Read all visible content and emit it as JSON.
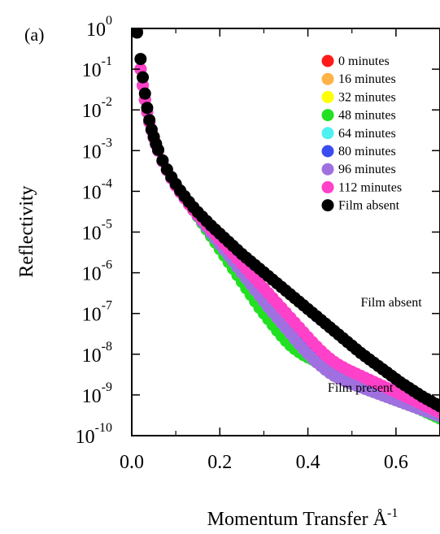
{
  "panel_label": "(a)",
  "chart_data": {
    "type": "scatter",
    "xlabel": "Momentum Transfer Å",
    "xlabel_exponent": "-1",
    "ylabel": "Reflectivity",
    "x_scale": "linear",
    "y_scale": "log",
    "xlim": [
      0.0,
      0.7
    ],
    "ylim": [
      1e-10,
      1.0
    ],
    "x_ticks": [
      {
        "value": 0.0,
        "label": "0.0"
      },
      {
        "value": 0.2,
        "label": "0.2"
      },
      {
        "value": 0.4,
        "label": "0.4"
      },
      {
        "value": 0.6,
        "label": "0.6"
      }
    ],
    "y_ticks": [
      {
        "exp": 0,
        "base": "10",
        "sup": "0"
      },
      {
        "exp": -1,
        "base": "10",
        "sup": "-1"
      },
      {
        "exp": -2,
        "base": "10",
        "sup": "-2"
      },
      {
        "exp": -3,
        "base": "10",
        "sup": "-3"
      },
      {
        "exp": -4,
        "base": "10",
        "sup": "-4"
      },
      {
        "exp": -5,
        "base": "10",
        "sup": "-5"
      },
      {
        "exp": -6,
        "base": "10",
        "sup": "-6"
      },
      {
        "exp": -7,
        "base": "10",
        "sup": "-7"
      },
      {
        "exp": -8,
        "base": "10",
        "sup": "-8"
      },
      {
        "exp": -9,
        "base": "10",
        "sup": "-9"
      },
      {
        "exp": -10,
        "base": "10",
        "sup": "-10"
      }
    ],
    "grid": false,
    "legend_position": "top-right",
    "annotations": [
      {
        "text": "Film absent",
        "x": 0.52,
        "y": 1.5e-07
      },
      {
        "text": "Film present",
        "x": 0.445,
        "y": 1.2e-09
      }
    ],
    "x": [
      0.012,
      0.02,
      0.025,
      0.03,
      0.035,
      0.04,
      0.045,
      0.05,
      0.055,
      0.06,
      0.07,
      0.08,
      0.09,
      0.1,
      0.11,
      0.12,
      0.13,
      0.14,
      0.15,
      0.16,
      0.17,
      0.18,
      0.19,
      0.2,
      0.21,
      0.22,
      0.23,
      0.24,
      0.25,
      0.26,
      0.27,
      0.28,
      0.29,
      0.3,
      0.31,
      0.32,
      0.33,
      0.34,
      0.35,
      0.36,
      0.37,
      0.38,
      0.39,
      0.4,
      0.41,
      0.42,
      0.43,
      0.44,
      0.45,
      0.46,
      0.47,
      0.48,
      0.49,
      0.5,
      0.51,
      0.52,
      0.53,
      0.54,
      0.55,
      0.56,
      0.57,
      0.58,
      0.59,
      0.6,
      0.61,
      0.62,
      0.63,
      0.64,
      0.65,
      0.66,
      0.67,
      0.68,
      0.69,
      0.7
    ],
    "series": [
      {
        "name": "0 minutes",
        "color": "#ff1a1a",
        "log10_y": [
          -0.08,
          -1.0,
          -1.4,
          -1.75,
          -2.05,
          -2.3,
          -2.5,
          -2.68,
          -2.85,
          -3.0,
          -3.26,
          -3.48,
          -3.68,
          -3.86,
          -4.02,
          -4.17,
          -4.32,
          -4.46,
          -4.6,
          -4.74,
          -4.88,
          -5.02,
          -5.16,
          -5.3,
          -5.44,
          -5.58,
          -5.72,
          -5.86,
          -6.0,
          -6.14,
          -6.28,
          -6.42,
          -6.56,
          -6.7,
          -6.84,
          -6.97,
          -7.1,
          -7.23,
          -7.36,
          -7.49,
          -7.62,
          -7.75,
          -7.87,
          -7.99,
          -8.1,
          -8.2,
          -8.29,
          -8.38,
          -8.46,
          -8.53,
          -8.59,
          -8.64,
          -8.69,
          -8.73,
          -8.77,
          -8.81,
          -8.85,
          -8.89,
          -8.93,
          -8.97,
          -9.01,
          -9.05,
          -9.09,
          -9.13,
          -9.17,
          -9.21,
          -9.25,
          -9.29,
          -9.33,
          -9.37,
          -9.41,
          -9.45,
          -9.49,
          -9.53
        ]
      },
      {
        "name": "16 minutes",
        "color": "#ffb347",
        "log10_y": [
          -0.08,
          -1.0,
          -1.4,
          -1.75,
          -2.05,
          -2.3,
          -2.5,
          -2.68,
          -2.85,
          -3.0,
          -3.26,
          -3.48,
          -3.68,
          -3.86,
          -4.02,
          -4.17,
          -4.32,
          -4.46,
          -4.6,
          -4.74,
          -4.88,
          -5.02,
          -5.16,
          -5.3,
          -5.44,
          -5.58,
          -5.72,
          -5.86,
          -6.0,
          -6.14,
          -6.28,
          -6.42,
          -6.56,
          -6.7,
          -6.84,
          -6.97,
          -7.1,
          -7.23,
          -7.36,
          -7.49,
          -7.62,
          -7.75,
          -7.87,
          -7.99,
          -8.1,
          -8.2,
          -8.29,
          -8.38,
          -8.46,
          -8.53,
          -8.59,
          -8.64,
          -8.69,
          -8.73,
          -8.77,
          -8.81,
          -8.85,
          -8.89,
          -8.93,
          -8.97,
          -9.01,
          -9.05,
          -9.09,
          -9.13,
          -9.17,
          -9.21,
          -9.25,
          -9.29,
          -9.33,
          -9.37,
          -9.41,
          -9.45,
          -9.49,
          -9.53
        ]
      },
      {
        "name": "32 minutes",
        "color": "#ffff00",
        "log10_y": [
          -0.08,
          -1.0,
          -1.4,
          -1.75,
          -2.05,
          -2.3,
          -2.5,
          -2.68,
          -2.85,
          -3.0,
          -3.26,
          -3.48,
          -3.68,
          -3.86,
          -4.02,
          -4.17,
          -4.32,
          -4.46,
          -4.6,
          -4.74,
          -4.88,
          -5.02,
          -5.16,
          -5.3,
          -5.44,
          -5.58,
          -5.72,
          -5.86,
          -6.0,
          -6.14,
          -6.28,
          -6.42,
          -6.56,
          -6.7,
          -6.84,
          -6.97,
          -7.1,
          -7.23,
          -7.36,
          -7.49,
          -7.62,
          -7.75,
          -7.87,
          -7.99,
          -8.1,
          -8.2,
          -8.29,
          -8.38,
          -8.46,
          -8.53,
          -8.59,
          -8.64,
          -8.69,
          -8.73,
          -8.77,
          -8.81,
          -8.85,
          -8.89,
          -8.93,
          -8.97,
          -9.01,
          -9.05,
          -9.09,
          -9.13,
          -9.17,
          -9.21,
          -9.25,
          -9.29,
          -9.33,
          -9.37,
          -9.41,
          -9.45,
          -9.49,
          -9.53
        ]
      },
      {
        "name": "48 minutes",
        "color": "#22e022",
        "log10_y": [
          -0.08,
          -1.0,
          -1.4,
          -1.75,
          -2.05,
          -2.3,
          -2.5,
          -2.68,
          -2.85,
          -3.0,
          -3.26,
          -3.48,
          -3.68,
          -3.86,
          -4.02,
          -4.17,
          -4.32,
          -4.46,
          -4.62,
          -4.78,
          -4.94,
          -5.1,
          -5.26,
          -5.42,
          -5.58,
          -5.74,
          -5.9,
          -6.06,
          -6.22,
          -6.38,
          -6.54,
          -6.7,
          -6.86,
          -7.0,
          -7.14,
          -7.28,
          -7.42,
          -7.55,
          -7.67,
          -7.78,
          -7.87,
          -7.95,
          -8.02,
          -8.08,
          -8.13,
          -8.18,
          -8.23,
          -8.28,
          -8.33,
          -8.38,
          -8.43,
          -8.48,
          -8.53,
          -8.58,
          -8.63,
          -8.68,
          -8.73,
          -8.78,
          -8.83,
          -8.88,
          -8.93,
          -8.98,
          -9.03,
          -9.08,
          -9.13,
          -9.18,
          -9.23,
          -9.28,
          -9.33,
          -9.38,
          -9.43,
          -9.48,
          -9.53,
          -9.58
        ]
      },
      {
        "name": "64 minutes",
        "color": "#4ff0f0",
        "log10_y": [
          -0.08,
          -1.0,
          -1.4,
          -1.75,
          -2.05,
          -2.3,
          -2.5,
          -2.68,
          -2.85,
          -3.0,
          -3.26,
          -3.48,
          -3.68,
          -3.86,
          -4.02,
          -4.17,
          -4.32,
          -4.46,
          -4.6,
          -4.74,
          -4.88,
          -5.02,
          -5.16,
          -5.3,
          -5.44,
          -5.58,
          -5.72,
          -5.86,
          -6.0,
          -6.14,
          -6.28,
          -6.42,
          -6.56,
          -6.7,
          -6.84,
          -6.97,
          -7.1,
          -7.23,
          -7.36,
          -7.49,
          -7.62,
          -7.75,
          -7.87,
          -7.99,
          -8.1,
          -8.2,
          -8.29,
          -8.38,
          -8.46,
          -8.53,
          -8.59,
          -8.64,
          -8.69,
          -8.73,
          -8.77,
          -8.81,
          -8.85,
          -8.89,
          -8.93,
          -8.97,
          -9.01,
          -9.05,
          -9.09,
          -9.13,
          -9.17,
          -9.21,
          -9.25,
          -9.29,
          -9.33,
          -9.37,
          -9.41,
          -9.45,
          -9.49,
          -9.53
        ]
      },
      {
        "name": "80 minutes",
        "color": "#3a4cf0",
        "log10_y": [
          -0.08,
          -1.0,
          -1.4,
          -1.75,
          -2.05,
          -2.3,
          -2.5,
          -2.68,
          -2.85,
          -3.0,
          -3.26,
          -3.48,
          -3.68,
          -3.86,
          -4.02,
          -4.17,
          -4.32,
          -4.46,
          -4.6,
          -4.74,
          -4.88,
          -5.02,
          -5.16,
          -5.3,
          -5.43,
          -5.56,
          -5.69,
          -5.82,
          -5.95,
          -6.08,
          -6.21,
          -6.34,
          -6.47,
          -6.6,
          -6.72,
          -6.84,
          -6.96,
          -7.08,
          -7.2,
          -7.32,
          -7.44,
          -7.56,
          -7.68,
          -7.8,
          -7.92,
          -8.03,
          -8.13,
          -8.22,
          -8.3,
          -8.37,
          -8.43,
          -8.48,
          -8.53,
          -8.57,
          -8.61,
          -8.65,
          -8.69,
          -8.73,
          -8.77,
          -8.81,
          -8.85,
          -8.89,
          -8.93,
          -8.97,
          -9.01,
          -9.05,
          -9.09,
          -9.13,
          -9.17,
          -9.21,
          -9.25,
          -9.29,
          -9.33,
          -9.37
        ]
      },
      {
        "name": "96 minutes",
        "color": "#a070e0",
        "log10_y": [
          -0.08,
          -1.0,
          -1.4,
          -1.75,
          -2.05,
          -2.3,
          -2.5,
          -2.68,
          -2.85,
          -3.0,
          -3.26,
          -3.48,
          -3.68,
          -3.86,
          -4.02,
          -4.17,
          -4.32,
          -4.46,
          -4.6,
          -4.74,
          -4.88,
          -5.02,
          -5.16,
          -5.3,
          -5.44,
          -5.58,
          -5.72,
          -5.86,
          -6.0,
          -6.14,
          -6.28,
          -6.42,
          -6.56,
          -6.7,
          -6.84,
          -6.97,
          -7.1,
          -7.23,
          -7.36,
          -7.49,
          -7.62,
          -7.75,
          -7.87,
          -7.99,
          -8.1,
          -8.2,
          -8.29,
          -8.38,
          -8.46,
          -8.53,
          -8.59,
          -8.64,
          -8.69,
          -8.73,
          -8.77,
          -8.81,
          -8.85,
          -8.89,
          -8.93,
          -8.97,
          -9.01,
          -9.05,
          -9.09,
          -9.13,
          -9.17,
          -9.21,
          -9.25,
          -9.29,
          -9.33,
          -9.37,
          -9.41,
          -9.45,
          -9.49,
          -9.53
        ]
      },
      {
        "name": "112 minutes",
        "color": "#ff40c8",
        "log10_y": [
          -0.08,
          -1.0,
          -1.4,
          -1.75,
          -2.05,
          -2.3,
          -2.5,
          -2.68,
          -2.85,
          -3.0,
          -3.26,
          -3.48,
          -3.68,
          -3.86,
          -4.02,
          -4.17,
          -4.32,
          -4.46,
          -4.58,
          -4.7,
          -4.82,
          -4.94,
          -5.06,
          -5.18,
          -5.3,
          -5.42,
          -5.54,
          -5.66,
          -5.78,
          -5.9,
          -6.02,
          -6.14,
          -6.26,
          -6.38,
          -6.5,
          -6.62,
          -6.74,
          -6.86,
          -6.98,
          -7.1,
          -7.22,
          -7.34,
          -7.46,
          -7.58,
          -7.7,
          -7.81,
          -7.92,
          -8.02,
          -8.11,
          -8.19,
          -8.26,
          -8.32,
          -8.38,
          -8.43,
          -8.48,
          -8.53,
          -8.58,
          -8.63,
          -8.68,
          -8.73,
          -8.78,
          -8.83,
          -8.88,
          -8.93,
          -8.98,
          -9.03,
          -9.08,
          -9.13,
          -9.18,
          -9.23,
          -9.28,
          -9.33,
          -9.38,
          -9.43
        ]
      },
      {
        "name": "Film absent",
        "color": "#000000",
        "log10_y": [
          -0.1,
          -0.75,
          -1.2,
          -1.6,
          -1.95,
          -2.25,
          -2.48,
          -2.66,
          -2.83,
          -2.98,
          -3.24,
          -3.46,
          -3.65,
          -3.82,
          -3.98,
          -4.12,
          -4.26,
          -4.39,
          -4.51,
          -4.62,
          -4.73,
          -4.84,
          -4.94,
          -5.04,
          -5.14,
          -5.24,
          -5.34,
          -5.44,
          -5.54,
          -5.63,
          -5.72,
          -5.81,
          -5.9,
          -5.99,
          -6.08,
          -6.17,
          -6.26,
          -6.35,
          -6.44,
          -6.53,
          -6.62,
          -6.71,
          -6.8,
          -6.89,
          -6.98,
          -7.07,
          -7.16,
          -7.25,
          -7.34,
          -7.43,
          -7.52,
          -7.61,
          -7.7,
          -7.79,
          -7.88,
          -7.97,
          -8.05,
          -8.13,
          -8.21,
          -8.29,
          -8.37,
          -8.45,
          -8.53,
          -8.61,
          -8.69,
          -8.76,
          -8.83,
          -8.9,
          -8.97,
          -9.04,
          -9.1,
          -9.16,
          -9.22,
          -9.28
        ]
      }
    ]
  }
}
